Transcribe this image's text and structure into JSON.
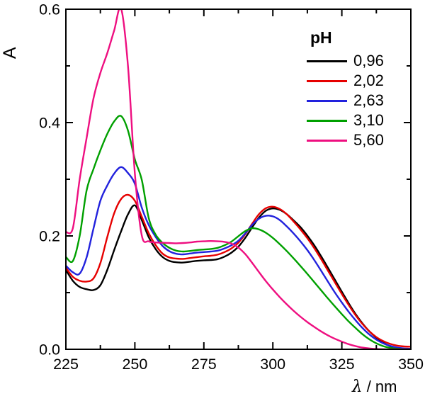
{
  "figure": {
    "background": "#ffffff",
    "y_axis_title": "A",
    "x_axis_title_symbol": "λ",
    "x_axis_title_rest": " / nm"
  },
  "legend": {
    "title": "pH",
    "entries": [
      {
        "label": "0,96",
        "color": "#000000"
      },
      {
        "label": "2,02",
        "color": "#e60000"
      },
      {
        "label": "2,63",
        "color": "#2222dd"
      },
      {
        "label": "3,10",
        "color": "#00a000"
      },
      {
        "label": "5,60",
        "color": "#ee0f80"
      }
    ]
  },
  "chart_data": {
    "type": "line",
    "title": "",
    "xlabel": "λ / nm",
    "ylabel": "A",
    "xlim": [
      225,
      350
    ],
    "ylim": [
      0,
      0.6
    ],
    "x_ticks": [
      225,
      250,
      275,
      300,
      325,
      350
    ],
    "x_tick_labels": [
      "225",
      "250",
      "275",
      "300",
      "325",
      "350"
    ],
    "x_minor_ticks": [
      237.5,
      262.5,
      287.5,
      312.5,
      337.5
    ],
    "y_ticks": [
      0,
      0.2,
      0.4,
      0.6
    ],
    "y_tick_labels": [
      "0.0",
      "0.2",
      "0.4",
      "0.6"
    ],
    "y_minor_ticks": [
      0.1,
      0.3,
      0.5
    ],
    "grid": false,
    "legend_title": "pH",
    "legend_position": "upper right inside",
    "x": [
      225,
      227.5,
      230,
      232.5,
      235,
      237.5,
      240,
      242.5,
      245,
      247.5,
      250,
      252.5,
      255,
      257.5,
      260,
      262.5,
      265,
      267.5,
      270,
      272.5,
      275,
      277.5,
      280,
      282.5,
      285,
      287.5,
      290,
      292.5,
      295,
      297.5,
      300,
      302.5,
      305,
      307.5,
      310,
      312.5,
      315,
      317.5,
      320,
      322.5,
      325,
      327.5,
      330,
      332.5,
      335,
      337.5,
      340,
      342.5,
      345,
      347.5,
      350
    ],
    "series": [
      {
        "name": "0,96",
        "color": "#000000",
        "y": [
          0.14,
          0.121,
          0.11,
          0.106,
          0.1045,
          0.113,
          0.14,
          0.175,
          0.208,
          0.238,
          0.254,
          0.228,
          0.198,
          0.177,
          0.163,
          0.156,
          0.1535,
          0.153,
          0.1545,
          0.156,
          0.157,
          0.1575,
          0.159,
          0.1635,
          0.1705,
          0.181,
          0.1965,
          0.215,
          0.2325,
          0.2445,
          0.2485,
          0.246,
          0.2385,
          0.2275,
          0.2155,
          0.2005,
          0.1835,
          0.164,
          0.1435,
          0.1225,
          0.1015,
          0.081,
          0.062,
          0.0455,
          0.0315,
          0.0205,
          0.0115,
          0.0055,
          0.002,
          0.0005,
          0
        ]
      },
      {
        "name": "2,02",
        "color": "#e60000",
        "y": [
          0.144,
          0.128,
          0.121,
          0.1195,
          0.125,
          0.152,
          0.198,
          0.24,
          0.265,
          0.2725,
          0.262,
          0.234,
          0.205,
          0.184,
          0.169,
          0.162,
          0.16,
          0.1595,
          0.161,
          0.1625,
          0.164,
          0.165,
          0.167,
          0.1715,
          0.178,
          0.188,
          0.203,
          0.2215,
          0.2385,
          0.249,
          0.2515,
          0.2475,
          0.2385,
          0.2255,
          0.2115,
          0.196,
          0.1785,
          0.159,
          0.1385,
          0.118,
          0.0975,
          0.078,
          0.06,
          0.0445,
          0.0315,
          0.0215,
          0.0145,
          0.0095,
          0.0065,
          0.005,
          0.0045
        ]
      },
      {
        "name": "2,63",
        "color": "#2222dd",
        "y": [
          0.1475,
          0.136,
          0.1335,
          0.162,
          0.213,
          0.262,
          0.289,
          0.31,
          0.3215,
          0.311,
          0.292,
          0.25,
          0.2195,
          0.1985,
          0.1825,
          0.173,
          0.1685,
          0.1675,
          0.169,
          0.1705,
          0.1715,
          0.1725,
          0.174,
          0.178,
          0.1835,
          0.1915,
          0.2045,
          0.2195,
          0.2305,
          0.2355,
          0.2345,
          0.228,
          0.217,
          0.2045,
          0.1905,
          0.175,
          0.1575,
          0.1385,
          0.119,
          0.1,
          0.0825,
          0.066,
          0.051,
          0.0375,
          0.026,
          0.017,
          0.0105,
          0.006,
          0.003,
          0.0015,
          0.001
        ]
      },
      {
        "name": "3,10",
        "color": "#00a000",
        "y": [
          0.163,
          0.1555,
          0.2,
          0.28,
          0.318,
          0.351,
          0.38,
          0.402,
          0.4115,
          0.386,
          0.335,
          0.299,
          0.232,
          0.2025,
          0.188,
          0.179,
          0.174,
          0.1725,
          0.1735,
          0.175,
          0.176,
          0.177,
          0.179,
          0.1835,
          0.19,
          0.1995,
          0.2085,
          0.2135,
          0.2115,
          0.2055,
          0.1965,
          0.1855,
          0.1735,
          0.1605,
          0.147,
          0.133,
          0.1185,
          0.104,
          0.0895,
          0.0755,
          0.062,
          0.049,
          0.0375,
          0.0265,
          0.0175,
          0.0105,
          0.0055,
          0.0025,
          0.001,
          0,
          0
        ]
      },
      {
        "name": "5,60",
        "color": "#ee0f80",
        "y": [
          0.207,
          0.213,
          0.3,
          0.3725,
          0.4425,
          0.4875,
          0.5225,
          0.5625,
          0.601,
          0.5,
          0.31,
          0.201,
          0.1905,
          0.1885,
          0.188,
          0.1875,
          0.187,
          0.1875,
          0.1885,
          0.19,
          0.1905,
          0.191,
          0.1905,
          0.1895,
          0.1865,
          0.1795,
          0.168,
          0.1525,
          0.136,
          0.12,
          0.1055,
          0.092,
          0.0795,
          0.068,
          0.0575,
          0.048,
          0.0395,
          0.0315,
          0.0245,
          0.0185,
          0.0135,
          0.009,
          0.0055,
          0.003,
          0.0015,
          0.0005,
          0,
          0,
          0,
          0,
          0
        ]
      }
    ]
  }
}
